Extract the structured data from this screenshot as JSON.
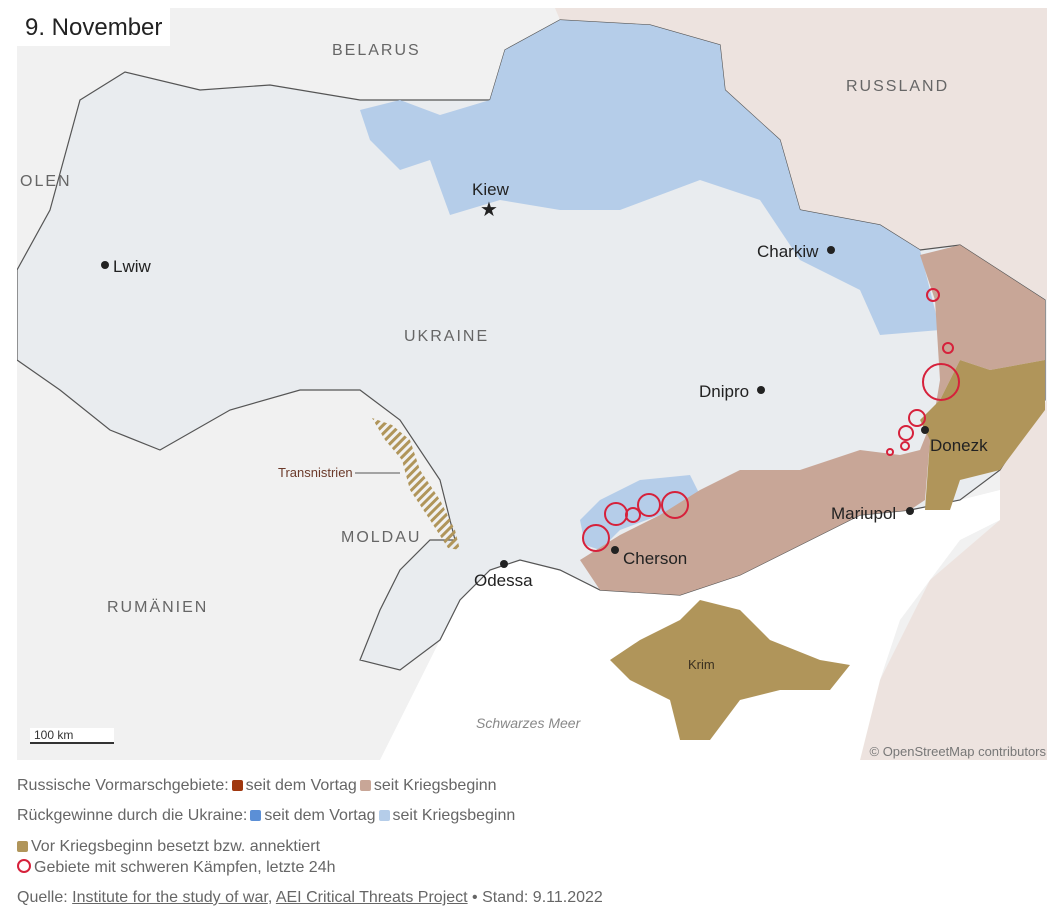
{
  "title": "9. November",
  "colors": {
    "russian_advance_day": "#a0380f",
    "russian_advance_war": "#c8a697",
    "ukraine_regain_day": "#5b8fd6",
    "ukraine_regain_war": "#b5cde9",
    "annexed": "#b0955a",
    "heavy_fighting": "#d6213b",
    "ukraine_land": "#e9ecef",
    "russia_land": "#ede3df",
    "other_land": "#f1f1f1",
    "sea": "#ffffff"
  },
  "countries": {
    "belarus": "BELARUS",
    "russia": "RUSSLAND",
    "poland": "OLEN",
    "ukraine": "UKRAINE",
    "moldova": "MOLDAU",
    "romania": "RUMÄNIEN"
  },
  "regions": {
    "transnistria": "Transnistrien",
    "crimea": "Krim",
    "sea": "Schwarzes Meer"
  },
  "cities": [
    {
      "name": "Kiew",
      "icon": "star-icon"
    },
    {
      "name": "Lwiw",
      "icon": "dot-icon"
    },
    {
      "name": "Charkiw",
      "icon": "dot-icon"
    },
    {
      "name": "Dnipro",
      "icon": "dot-icon"
    },
    {
      "name": "Donezk",
      "icon": "dot-icon"
    },
    {
      "name": "Mariupol",
      "icon": "dot-icon"
    },
    {
      "name": "Cherson",
      "icon": "dot-icon"
    },
    {
      "name": "Odessa",
      "icon": "dot-icon"
    }
  ],
  "scale": "100 km",
  "attribution": "© OpenStreetMap contributors",
  "legend": {
    "russian_label": "Russische Vormarschgebiete:",
    "ukraine_label": "Rückgewinne durch die Ukraine:",
    "since_day": "seit dem Vortag",
    "since_war": "seit Kriegsbeginn",
    "annexed": "Vor Kriegsbeginn besetzt bzw. annektiert",
    "fighting": "Gebiete mit schweren Kämpfen, letzte 24h"
  },
  "source": {
    "prefix": "Quelle:",
    "link1": "Institute for the study of war",
    "sep": ",",
    "link2": "AEI Critical Threats Project",
    "date": "• Stand: 9.11.2022"
  }
}
